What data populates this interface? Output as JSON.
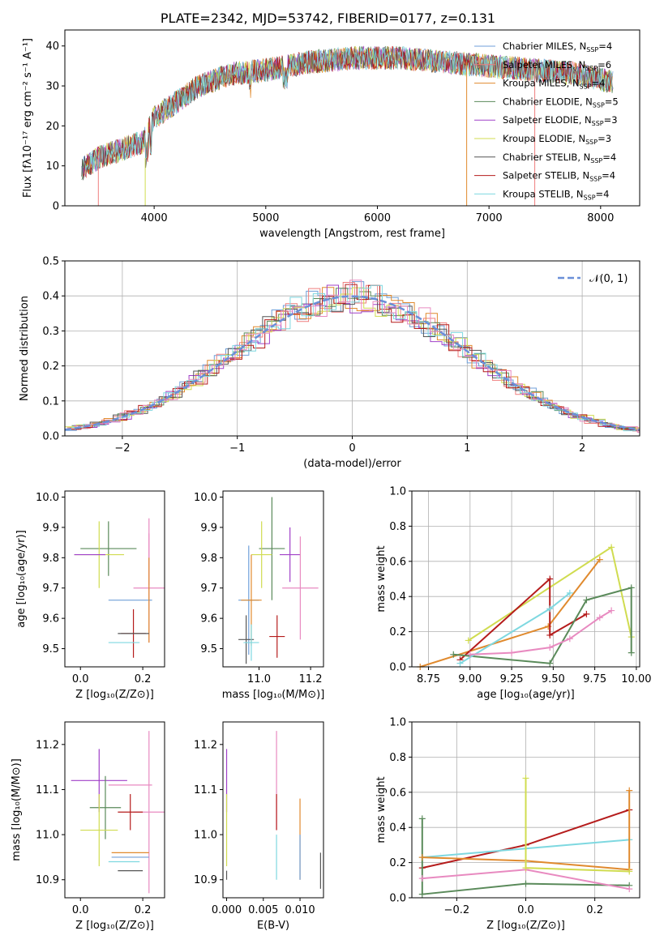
{
  "colors": {
    "chabrier_miles": "#6f9fd8",
    "salpeter_miles": "#ef7f7f",
    "kroupa_miles": "#e08a2e",
    "chabrier_elodie": "#5a8a5a",
    "salpeter_elodie": "#a040c8",
    "kroupa_elodie": "#d0dc50",
    "chabrier_stelib": "#555555",
    "salpeter_stelib": "#b51c1c",
    "kroupa_stelib": "#7ed8e0",
    "pink": "#e88ac0",
    "dash": "#6a8fd8"
  },
  "chart_data": [
    {
      "id": "spectrum",
      "type": "line",
      "title": "PLATE=2342, MJD=53742, FIBERID=0177, z=0.131",
      "xlabel": "wavelength [Angstrom, rest frame]",
      "ylabel": "Flux [fλ10⁻¹⁷ erg cm⁻² s⁻¹ A⁻¹]",
      "xlim": [
        3200,
        8350
      ],
      "ylim": [
        0,
        44
      ],
      "xticks": [
        "4000",
        "5000",
        "6000",
        "7000",
        "8000"
      ],
      "yticks": [
        "0",
        "10",
        "20",
        "30",
        "40"
      ],
      "grid": false,
      "legend_position": "top-right",
      "legend": [
        {
          "label": "Chabrier MILES, N",
          "sub": "SSP",
          "suffix": "=4",
          "color": "chabrier_miles"
        },
        {
          "label": "Salpeter MILES, N",
          "sub": "SSP",
          "suffix": "=6",
          "color": "salpeter_miles"
        },
        {
          "label": "Kroupa MILES, N",
          "sub": "SSP",
          "suffix": "=4",
          "color": "kroupa_miles"
        },
        {
          "label": "Chabrier ELODIE, N",
          "sub": "SSP",
          "suffix": "=5",
          "color": "chabrier_elodie"
        },
        {
          "label": "Salpeter ELODIE, N",
          "sub": "SSP",
          "suffix": "=3",
          "color": "salpeter_elodie"
        },
        {
          "label": "Kroupa ELODIE, N",
          "sub": "SSP",
          "suffix": "=3",
          "color": "kroupa_elodie"
        },
        {
          "label": "Chabrier STELIB, N",
          "sub": "SSP",
          "suffix": "=4",
          "color": "chabrier_stelib"
        },
        {
          "label": "Salpeter STELIB, N",
          "sub": "SSP",
          "suffix": "=4",
          "color": "salpeter_stelib"
        },
        {
          "label": "Kroupa STELIB, N",
          "sub": "SSP",
          "suffix": "=4",
          "color": "kroupa_stelib"
        }
      ],
      "continuum": [
        [
          3350,
          9
        ],
        [
          3500,
          12
        ],
        [
          3700,
          14
        ],
        [
          3900,
          16
        ],
        [
          4000,
          22
        ],
        [
          4200,
          26
        ],
        [
          4400,
          30
        ],
        [
          4700,
          33
        ],
        [
          5000,
          34
        ],
        [
          5400,
          36
        ],
        [
          5800,
          37
        ],
        [
          6200,
          37
        ],
        [
          6600,
          36
        ],
        [
          7000,
          35
        ],
        [
          7400,
          34
        ],
        [
          7800,
          33
        ],
        [
          8100,
          31
        ]
      ]
    },
    {
      "id": "residuals",
      "type": "line",
      "xlabel": "(data-model)/error",
      "ylabel": "Normed distribution",
      "xlim": [
        -2.5,
        2.5
      ],
      "ylim": [
        0,
        0.5
      ],
      "xticks": [
        "−2",
        "−1",
        "0",
        "1",
        "2"
      ],
      "yticks": [
        "0.0",
        "0.1",
        "0.2",
        "0.3",
        "0.4",
        "0.5"
      ],
      "grid": true,
      "legend_position": "top-right",
      "legend": [
        {
          "label": "𝒩(0, 1)",
          "color": "dash"
        }
      ],
      "gaussian": {
        "mean": 0,
        "sigma": 1
      }
    },
    {
      "id": "z_age",
      "type": "scatter",
      "xlabel": "Z [log₁₀(Z/Z⊙)]",
      "ylabel": "age  [log₁₀(age/yr)]",
      "xlim": [
        -0.05,
        0.27
      ],
      "ylim": [
        9.44,
        10.02
      ],
      "xticks": [
        "0.0",
        "0.2"
      ],
      "yticks": [
        "9.5",
        "9.6",
        "9.7",
        "9.8",
        "9.9",
        "10.0"
      ],
      "points": [
        {
          "x": 0.09,
          "y": 9.83,
          "xerr": 0.09,
          "yerr": 0.09,
          "color": "chabrier_elodie"
        },
        {
          "x": 0.06,
          "y": 9.81,
          "xerr": 0.08,
          "yerr": 0.11,
          "color": "kroupa_elodie"
        },
        {
          "x": 0.03,
          "y": 9.81,
          "xerr": 0.05,
          "yerr": 0.0,
          "color": "salpeter_elodie"
        },
        {
          "x": 0.22,
          "y": 9.82,
          "xerr": 0.0,
          "yerr": 0.11,
          "color": "pink"
        },
        {
          "x": 0.22,
          "y": 9.7,
          "xerr": 0.05,
          "yerr": 0.18,
          "color": "pink"
        },
        {
          "x": 0.16,
          "y": 9.66,
          "xerr": 0.07,
          "yerr": 0.0,
          "color": "chabrier_miles"
        },
        {
          "x": 0.22,
          "y": 9.66,
          "xerr": 0.0,
          "yerr": 0.14,
          "color": "kroupa_miles"
        },
        {
          "x": 0.17,
          "y": 9.55,
          "xerr": 0.04,
          "yerr": 0.08,
          "color": "salpeter_stelib"
        },
        {
          "x": 0.14,
          "y": 9.52,
          "xerr": 0.05,
          "yerr": 0.0,
          "color": "kroupa_stelib"
        },
        {
          "x": 0.17,
          "y": 9.55,
          "xerr": 0.05,
          "yerr": 0.0,
          "color": "chabrier_stelib"
        }
      ]
    },
    {
      "id": "mass_age",
      "type": "scatter",
      "xlabel": "mass [log₁₀(M/M⊙)]",
      "ylabel": "",
      "xlim": [
        10.86,
        11.25
      ],
      "ylim": [
        9.44,
        10.02
      ],
      "xticks": [
        "11.0",
        "11.2"
      ],
      "yticks": [
        "9.5",
        "9.6",
        "9.7",
        "9.8",
        "9.9",
        "10.0"
      ],
      "points": [
        {
          "x": 11.05,
          "y": 9.83,
          "xerr": 0.05,
          "yerr": 0.17,
          "color": "chabrier_elodie"
        },
        {
          "x": 11.01,
          "y": 9.81,
          "xerr": 0.04,
          "yerr": 0.11,
          "color": "kroupa_elodie"
        },
        {
          "x": 11.12,
          "y": 9.81,
          "xerr": 0.04,
          "yerr": 0.09,
          "color": "salpeter_elodie"
        },
        {
          "x": 11.16,
          "y": 9.7,
          "xerr": 0.07,
          "yerr": 0.17,
          "color": "pink"
        },
        {
          "x": 10.96,
          "y": 9.66,
          "xerr": 0.04,
          "yerr": 0.18,
          "color": "chabrier_miles"
        },
        {
          "x": 10.97,
          "y": 9.66,
          "xerr": 0.04,
          "yerr": 0.15,
          "color": "kroupa_miles"
        },
        {
          "x": 11.07,
          "y": 9.54,
          "xerr": 0.03,
          "yerr": 0.07,
          "color": "salpeter_stelib"
        },
        {
          "x": 10.95,
          "y": 9.53,
          "xerr": 0.03,
          "yerr": 0.08,
          "color": "chabrier_stelib"
        },
        {
          "x": 10.97,
          "y": 9.52,
          "xerr": 0.03,
          "yerr": 0.06,
          "color": "kroupa_stelib"
        }
      ]
    },
    {
      "id": "age_weight",
      "type": "line",
      "xlabel": "age  [log₁₀(age/yr)]",
      "ylabel": "mass weight",
      "xlim": [
        8.65,
        10.02
      ],
      "ylim": [
        0,
        1
      ],
      "xticks": [
        "8.75",
        "9.00",
        "9.25",
        "9.50",
        "9.75",
        "10.00"
      ],
      "yticks": [
        "0.0",
        "0.2",
        "0.4",
        "0.6",
        "0.8",
        "1.0"
      ],
      "grid": true,
      "series": [
        {
          "color": "kroupa_elodie",
          "x": [
            8.99,
            9.85,
            9.97
          ],
          "y": [
            0.15,
            0.68,
            0.17
          ]
        },
        {
          "color": "kroupa_miles",
          "x": [
            8.7,
            9.47,
            9.78
          ],
          "y": [
            0.0,
            0.23,
            0.61
          ]
        },
        {
          "color": "salpeter_stelib",
          "x": [
            8.94,
            9.48,
            9.48,
            9.7
          ],
          "y": [
            0.04,
            0.5,
            0.18,
            0.3
          ]
        },
        {
          "color": "chabrier_elodie",
          "x": [
            8.9,
            9.48,
            9.7,
            9.97,
            9.97
          ],
          "y": [
            0.07,
            0.02,
            0.38,
            0.45,
            0.08
          ]
        },
        {
          "color": "kroupa_stelib",
          "x": [
            8.94,
            9.48,
            9.6
          ],
          "y": [
            0.02,
            0.33,
            0.42
          ]
        },
        {
          "color": "pink",
          "x": [
            9.0,
            9.25,
            9.48,
            9.6,
            9.78,
            9.85
          ],
          "y": [
            0.07,
            0.08,
            0.11,
            0.16,
            0.28,
            0.32
          ]
        }
      ]
    },
    {
      "id": "z_mass",
      "type": "scatter",
      "xlabel": "Z [log₁₀(Z/Z⊙)]",
      "ylabel": "mass [log₁₀(M/M⊙)]",
      "xlim": [
        -0.05,
        0.27
      ],
      "ylim": [
        10.86,
        11.25
      ],
      "xticks": [
        "0.0",
        "0.2"
      ],
      "yticks": [
        "10.9",
        "11.0",
        "11.1",
        "11.2"
      ],
      "points": [
        {
          "x": 0.06,
          "y": 11.12,
          "xerr": 0.09,
          "yerr": 0.07,
          "color": "salpeter_elodie"
        },
        {
          "x": 0.16,
          "y": 11.11,
          "xerr": 0.07,
          "yerr": 0.0,
          "color": "pink"
        },
        {
          "x": 0.22,
          "y": 11.05,
          "xerr": 0.05,
          "yerr": 0.18,
          "color": "pink"
        },
        {
          "x": 0.08,
          "y": 11.06,
          "xerr": 0.05,
          "yerr": 0.07,
          "color": "chabrier_elodie"
        },
        {
          "x": 0.16,
          "y": 11.05,
          "xerr": 0.04,
          "yerr": 0.04,
          "color": "salpeter_stelib"
        },
        {
          "x": 0.06,
          "y": 11.01,
          "xerr": 0.06,
          "yerr": 0.08,
          "color": "kroupa_elodie"
        },
        {
          "x": 0.16,
          "y": 10.96,
          "xerr": 0.06,
          "yerr": 0.0,
          "color": "kroupa_miles"
        },
        {
          "x": 0.16,
          "y": 10.95,
          "xerr": 0.06,
          "yerr": 0.0,
          "color": "chabrier_miles"
        },
        {
          "x": 0.14,
          "y": 10.94,
          "xerr": 0.05,
          "yerr": 0.0,
          "color": "kroupa_stelib"
        },
        {
          "x": 0.16,
          "y": 10.92,
          "xerr": 0.04,
          "yerr": 0.0,
          "color": "chabrier_stelib"
        }
      ]
    },
    {
      "id": "ebv_mass",
      "type": "scatter",
      "xlabel": "E(B-V)",
      "ylabel": "",
      "xlim": [
        -0.0005,
        0.0132
      ],
      "ylim": [
        10.86,
        11.25
      ],
      "xticks": [
        "0.000",
        "0.005",
        "0.010"
      ],
      "yticks": [
        "10.9",
        "11.0",
        "11.1",
        "11.2"
      ],
      "points": [
        {
          "x": 0.0,
          "y": 11.12,
          "xerr": 0,
          "yerr": 0.07,
          "color": "salpeter_elodie"
        },
        {
          "x": 0.0,
          "y": 11.01,
          "xerr": 0,
          "yerr": 0.08,
          "color": "kroupa_elodie"
        },
        {
          "x": 0.0,
          "y": 10.91,
          "xerr": 0,
          "yerr": 0.01,
          "color": "chabrier_stelib"
        },
        {
          "x": 0.0068,
          "y": 11.12,
          "xerr": 0,
          "yerr": 0.11,
          "color": "pink"
        },
        {
          "x": 0.0068,
          "y": 11.05,
          "xerr": 0,
          "yerr": 0.04,
          "color": "salpeter_stelib"
        },
        {
          "x": 0.0068,
          "y": 10.95,
          "xerr": 0,
          "yerr": 0.05,
          "color": "kroupa_stelib"
        },
        {
          "x": 0.01,
          "y": 10.99,
          "xerr": 0,
          "yerr": 0.09,
          "color": "kroupa_miles"
        },
        {
          "x": 0.01,
          "y": 10.95,
          "xerr": 0,
          "yerr": 0.05,
          "color": "chabrier_miles"
        },
        {
          "x": 0.0128,
          "y": 10.92,
          "xerr": 0,
          "yerr": 0.04,
          "color": "chabrier_stelib"
        }
      ]
    },
    {
      "id": "z_weight",
      "type": "line",
      "xlabel": "Z [log₁₀(Z/Z⊙)]",
      "ylabel": "mass weight",
      "xlim": [
        -0.33,
        0.33
      ],
      "ylim": [
        0,
        1
      ],
      "xticks": [
        "−0.2",
        "0.0",
        "0.2"
      ],
      "yticks": [
        "0.0",
        "0.2",
        "0.4",
        "0.6",
        "0.8",
        "1.0"
      ],
      "grid": true,
      "series": [
        {
          "color": "salpeter_stelib",
          "x": [
            -0.3,
            0.0,
            0.3
          ],
          "y": [
            0.17,
            0.3,
            0.5
          ]
        },
        {
          "color": "kroupa_stelib",
          "x": [
            -0.3,
            0.0,
            0.3
          ],
          "y": [
            0.23,
            0.28,
            0.33
          ]
        },
        {
          "color": "chabrier_elodie",
          "x": [
            -0.3,
            -0.3,
            0.0,
            0.3
          ],
          "y": [
            0.45,
            0.02,
            0.08,
            0.07
          ]
        },
        {
          "color": "pink",
          "x": [
            -0.3,
            0.0,
            0.3
          ],
          "y": [
            0.11,
            0.16,
            0.05
          ]
        },
        {
          "color": "kroupa_miles",
          "x": [
            -0.3,
            0.0,
            0.3,
            0.3
          ],
          "y": [
            0.23,
            0.21,
            0.16,
            0.61
          ]
        },
        {
          "color": "kroupa_elodie",
          "x": [
            0.0,
            0.0,
            0.3
          ],
          "y": [
            0.68,
            0.17,
            0.15
          ]
        }
      ]
    }
  ]
}
